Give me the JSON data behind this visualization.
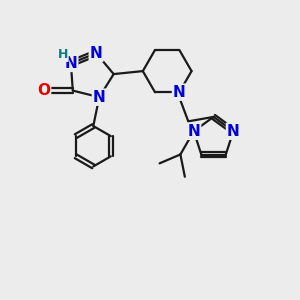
{
  "background_color": "#ececec",
  "bond_color": "#1a1a1a",
  "N_color": "#0000dd",
  "O_color": "#ee0000",
  "H_color": "#008080",
  "bond_width": 1.6,
  "font_size_atom": 11,
  "font_size_H": 9,
  "figsize": [
    3.0,
    3.0
  ],
  "dpi": 100,
  "xlim": [
    0,
    10
  ],
  "ylim": [
    0,
    10
  ]
}
